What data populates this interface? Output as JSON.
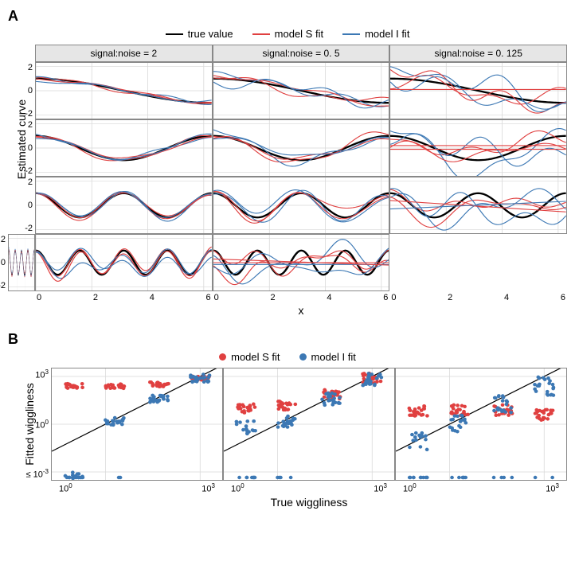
{
  "colors": {
    "true": "#000000",
    "modelS": "#e04040",
    "modelI": "#3c78b4",
    "grid": "#d8d8d8",
    "facetHeader": "#e6e6e6",
    "border": "#888888",
    "bg": "#ffffff"
  },
  "panelA": {
    "label": "A",
    "legend": [
      {
        "label": "true value",
        "color": "#000000"
      },
      {
        "label": "model S fit",
        "color": "#e04040"
      },
      {
        "label": "model I fit",
        "color": "#3c78b4"
      }
    ],
    "ylabel": "Estimated curve",
    "xlabel": "x",
    "facetTitles": [
      "signal:noise = 2",
      "signal:noise = 0. 5",
      "signal:noise = 0. 125"
    ],
    "xlim": [
      0,
      6.28
    ],
    "ylim": [
      -2.3,
      2.3
    ],
    "xticks": [
      0,
      2,
      4,
      6
    ],
    "yticks": [
      -2,
      0,
      2
    ],
    "rows": [
      {
        "freq": 0.5,
        "amp": 1.0
      },
      {
        "freq": 1.0,
        "amp": 1.0
      },
      {
        "freq": 2.0,
        "amp": 1.0
      },
      {
        "freq": 4.0,
        "amp": 1.0
      }
    ],
    "cols": [
      {
        "sNoise": 0.08,
        "iNoise": 0.08
      },
      {
        "sNoise": 0.2,
        "iNoise": 0.2
      },
      {
        "sNoise": 0.45,
        "iNoise": 0.45
      }
    ],
    "extraLines": {
      "2_1": [
        {
          "color": "#e04040",
          "type": "flat",
          "y": 0.1
        }
      ],
      "2_2": [
        {
          "color": "#e04040",
          "type": "flat",
          "y": -0.1
        },
        {
          "color": "#e04040",
          "type": "flat",
          "y": 0.2
        }
      ],
      "2_3": [
        {
          "color": "#e04040",
          "type": "line",
          "m": -0.15,
          "b": 0.4
        },
        {
          "color": "#3c78b4",
          "type": "line",
          "m": 0.1,
          "b": -0.3
        }
      ],
      "2_4": [
        {
          "color": "#e04040",
          "type": "flat",
          "y": 0.0
        },
        {
          "color": "#3c78b4",
          "type": "flat",
          "y": -0.15
        },
        {
          "color": "#e04040",
          "type": "line",
          "m": -0.08,
          "b": 0.3
        }
      ]
    },
    "trueLineWidth": 2.3,
    "fitLineWidth": 1.1
  },
  "panelB": {
    "label": "B",
    "legend": [
      {
        "label": "model S fit",
        "color": "#e04040"
      },
      {
        "label": "model I fit",
        "color": "#3c78b4"
      }
    ],
    "ylabel": "Fitted wiggliness",
    "xlabel": "True wiggliness",
    "xlimLog": [
      -1.7,
      3.7
    ],
    "ylimLog": [
      -3.5,
      3.5
    ],
    "xticksLog": [
      0,
      3
    ],
    "xtickLabels": [
      "10⁰",
      "10³"
    ],
    "yticksLog": [
      -3,
      0,
      3
    ],
    "ytickLabels": [
      "≤ 10⁻³",
      "10⁰",
      "10³"
    ],
    "clusterX": [
      -1.0,
      0.3,
      1.7,
      3.0
    ],
    "dotR": 2.2,
    "cols": [
      {
        "sOffsets": [
          2.4,
          2.4,
          2.5,
          2.9
        ],
        "iOffsets": [
          -3.2,
          0.2,
          1.6,
          2.9
        ],
        "sSpread": 0.15,
        "iSpread": 0.25,
        "iFloorCount": [
          15,
          2,
          0,
          0
        ]
      },
      {
        "sOffsets": [
          1.0,
          1.2,
          1.9,
          2.9
        ],
        "iOffsets": [
          -0.2,
          0.2,
          1.6,
          2.8
        ],
        "sSpread": 0.3,
        "iSpread": 0.4,
        "iFloorCount": [
          8,
          4,
          0,
          0
        ]
      },
      {
        "sOffsets": [
          0.8,
          0.9,
          0.9,
          0.6
        ],
        "iOffsets": [
          -1.0,
          0.0,
          1.2,
          2.4
        ],
        "sSpread": 0.35,
        "iSpread": 0.6,
        "iFloorCount": [
          10,
          6,
          4,
          2
        ]
      }
    ],
    "nDots": 24
  }
}
